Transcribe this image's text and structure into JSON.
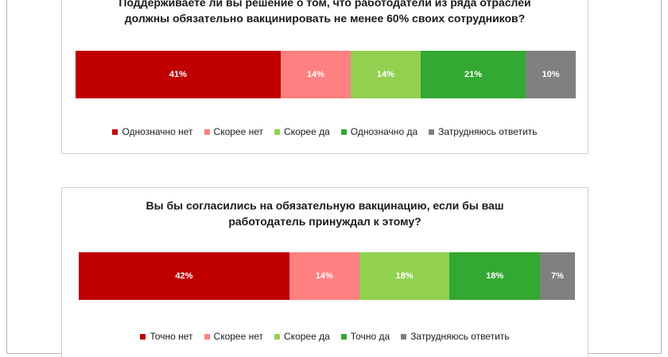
{
  "chart_data": [
    {
      "type": "bar",
      "orientation": "horizontal-stacked",
      "title_lines": [
        "Поддерживаете ли вы решение о том, что работодатели из ряда отраслей",
        "должны обязательно вакцинировать не менее 60% своих сотрудников?"
      ],
      "series": [
        {
          "name": "Однозначно нет",
          "value": 41,
          "label": "41%",
          "color": "#c00000"
        },
        {
          "name": "Скорее нет",
          "value": 14,
          "label": "14%",
          "color": "#ff8080"
        },
        {
          "name": "Скорее да",
          "value": 14,
          "label": "14%",
          "color": "#92d050"
        },
        {
          "name": "Однозначно да",
          "value": 21,
          "label": "21%",
          "color": "#33a832"
        },
        {
          "name": "Затрудняюсь ответить",
          "value": 10,
          "label": "10%",
          "color": "#808080"
        }
      ],
      "legend_position": "bottom",
      "grid": false
    },
    {
      "type": "bar",
      "orientation": "horizontal-stacked",
      "title_lines": [
        "Вы бы согласились на обязательную вакцинацию, если бы ваш",
        "работодатель принуждал к этому?"
      ],
      "series": [
        {
          "name": "Точно нет",
          "value": 42,
          "label": "42%",
          "color": "#c00000"
        },
        {
          "name": "Скорее нет",
          "value": 14,
          "label": "14%",
          "color": "#ff8080"
        },
        {
          "name": "Скорее да",
          "value": 18,
          "label": "18%",
          "color": "#92d050"
        },
        {
          "name": "Точно да",
          "value": 18,
          "label": "18%",
          "color": "#33a832"
        },
        {
          "name": "Затрудняюсь ответить",
          "value": 7,
          "label": "7%",
          "color": "#808080"
        }
      ],
      "legend_position": "bottom",
      "grid": false
    }
  ]
}
